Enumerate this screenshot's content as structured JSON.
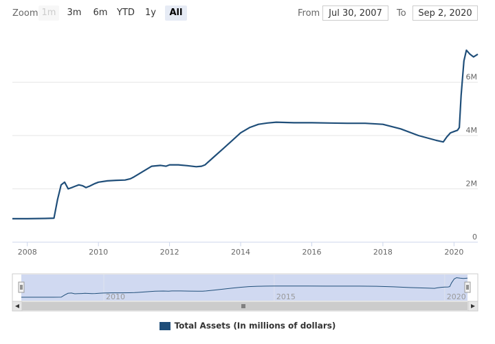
{
  "toolbar": {
    "zoom_label": "Zoom",
    "buttons": [
      {
        "label": "1m",
        "state": "disabled"
      },
      {
        "label": "3m",
        "state": "normal"
      },
      {
        "label": "6m",
        "state": "normal"
      },
      {
        "label": "YTD",
        "state": "normal"
      },
      {
        "label": "1y",
        "state": "normal"
      },
      {
        "label": "All",
        "state": "active"
      }
    ],
    "from_label": "From",
    "from_value": "Jul 30, 2007",
    "to_label": "To",
    "to_value": "Sep 2, 2020"
  },
  "colors": {
    "series": "#1f4e79",
    "navigator_fill": "#c8d2ee",
    "grid": "#e6e6e6"
  },
  "chart_data": {
    "type": "line",
    "title": "",
    "xlabel": "",
    "ylabel": "",
    "xlim": [
      2007.58,
      2020.67
    ],
    "ylim": [
      0,
      8000000
    ],
    "x_ticks": [
      {
        "value": 2008,
        "label": "2008"
      },
      {
        "value": 2010,
        "label": "2010"
      },
      {
        "value": 2012,
        "label": "2012"
      },
      {
        "value": 2014,
        "label": "2014"
      },
      {
        "value": 2016,
        "label": "2016"
      },
      {
        "value": 2018,
        "label": "2018"
      },
      {
        "value": 2020,
        "label": "2020"
      }
    ],
    "y_ticks": [
      {
        "value": 0,
        "label": "0"
      },
      {
        "value": 2000000,
        "label": "2M"
      },
      {
        "value": 4000000,
        "label": "4M"
      },
      {
        "value": 6000000,
        "label": "6M"
      }
    ],
    "navigator_ticks": [
      {
        "value": 2010,
        "label": "2010"
      },
      {
        "value": 2015,
        "label": "2015"
      },
      {
        "value": 2020,
        "label": "2020"
      }
    ],
    "legend": "top-center",
    "series": [
      {
        "name": "Total Assets (In millions of dollars)",
        "x": [
          2007.58,
          2008.0,
          2008.5,
          2008.75,
          2008.85,
          2008.95,
          2009.05,
          2009.15,
          2009.25,
          2009.35,
          2009.45,
          2009.55,
          2009.65,
          2009.75,
          2009.9,
          2010.0,
          2010.25,
          2010.5,
          2010.75,
          2010.9,
          2011.0,
          2011.25,
          2011.5,
          2011.75,
          2011.9,
          2012.0,
          2012.25,
          2012.5,
          2012.75,
          2012.9,
          2013.0,
          2013.25,
          2013.5,
          2013.75,
          2014.0,
          2014.25,
          2014.5,
          2014.75,
          2015.0,
          2015.5,
          2016.0,
          2016.5,
          2017.0,
          2017.5,
          2018.0,
          2018.5,
          2019.0,
          2019.5,
          2019.7,
          2019.8,
          2019.9,
          2020.0,
          2020.1,
          2020.15,
          2020.2,
          2020.28,
          2020.35,
          2020.45,
          2020.55,
          2020.67
        ],
        "values": [
          880000,
          880000,
          890000,
          900000,
          1600000,
          2150000,
          2250000,
          2000000,
          2050000,
          2100000,
          2150000,
          2120000,
          2050000,
          2100000,
          2200000,
          2250000,
          2300000,
          2320000,
          2330000,
          2380000,
          2450000,
          2650000,
          2850000,
          2880000,
          2850000,
          2900000,
          2900000,
          2870000,
          2830000,
          2850000,
          2900000,
          3200000,
          3500000,
          3800000,
          4100000,
          4300000,
          4420000,
          4470000,
          4500000,
          4480000,
          4480000,
          4470000,
          4460000,
          4460000,
          4420000,
          4250000,
          4000000,
          3820000,
          3760000,
          3950000,
          4100000,
          4150000,
          4200000,
          4300000,
          5500000,
          6800000,
          7200000,
          7050000,
          6950000,
          7050000
        ]
      }
    ]
  }
}
